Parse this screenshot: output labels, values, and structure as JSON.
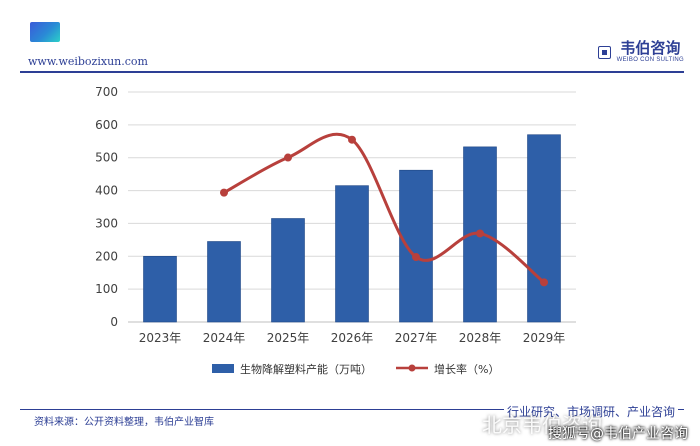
{
  "header": {
    "website": "www.weibozixun.com",
    "brand_cn": "韦伯咨询",
    "brand_en": "WEIBO CON SULTING"
  },
  "footer": {
    "source": "资料来源：公开资料整理，韦伯产业智库",
    "tagline": "行业研究、市场调研、产业咨询",
    "watermark_mid": "北京韦伯咨询",
    "watermark_bottom": "搜狐号@韦伯产业咨询"
  },
  "colors": {
    "bar": "#2e5fa8",
    "line": "#b8403c",
    "brand": "#2d3f95",
    "grid": "#d9d9d9"
  },
  "chart_data": {
    "type": "bar",
    "categories": [
      "2023年",
      "2024年",
      "2025年",
      "2026年",
      "2027年",
      "2028年",
      "2029年"
    ],
    "series": [
      {
        "name": "生物降解塑料产能（万吨）",
        "type": "bar",
        "axis": "left",
        "values": [
          200,
          245,
          315,
          415,
          462,
          533,
          570
        ]
      },
      {
        "name": "增长率（%）",
        "type": "line",
        "axis": "right",
        "values": [
          null,
          22.5,
          28.6,
          31.7,
          11.3,
          15.4,
          6.9
        ]
      }
    ],
    "ylim": [
      0,
      700
    ],
    "yticks": [
      "0",
      "100",
      "200",
      "300",
      "400",
      "500",
      "600",
      "700"
    ],
    "y2lim": [
      0,
      40
    ],
    "grid": true,
    "legend": "bottom"
  }
}
